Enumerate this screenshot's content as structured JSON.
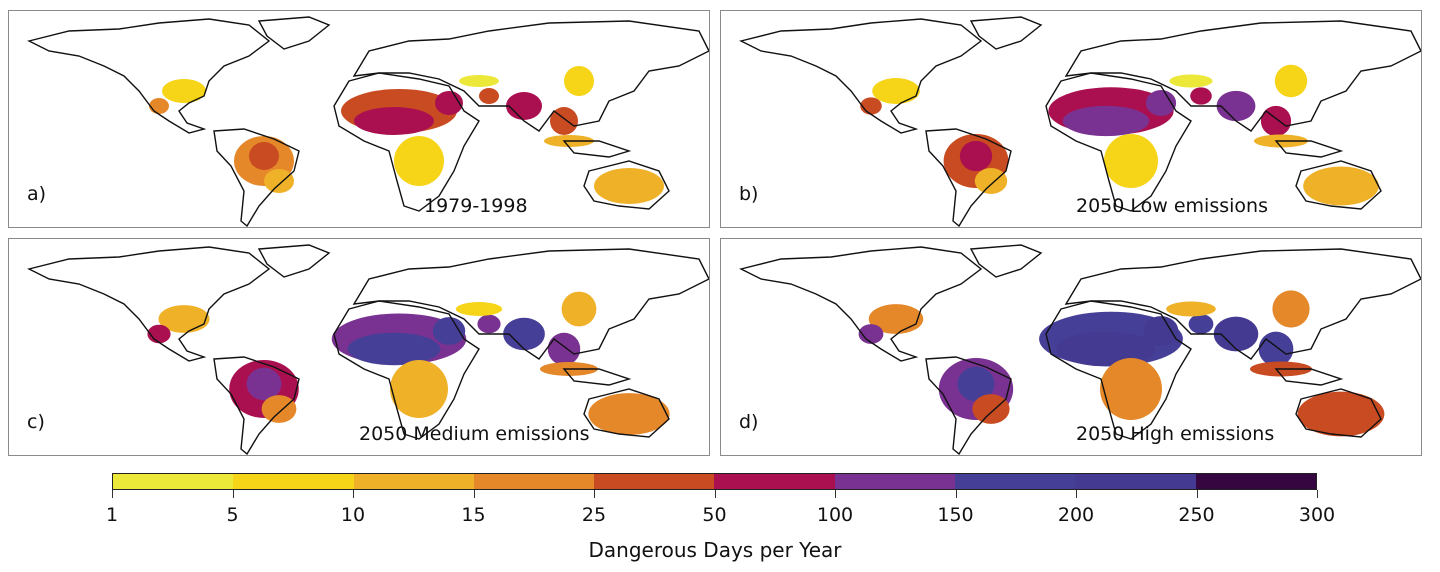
{
  "panels": [
    {
      "label": "a)",
      "title": "1979-1998",
      "intensity": 0
    },
    {
      "label": "b)",
      "title": "2050 Low emissions",
      "intensity": 1
    },
    {
      "label": "c)",
      "title": "2050 Medium emissions",
      "intensity": 2
    },
    {
      "label": "d)",
      "title": "2050 High emissions",
      "intensity": 3
    }
  ],
  "colorbar": {
    "title": "Dangerous Days per Year",
    "ticks": [
      "1",
      "5",
      "10",
      "15",
      "25",
      "50",
      "100",
      "150",
      "200",
      "250",
      "300"
    ],
    "colors": [
      "#ece83a",
      "#f6d417",
      "#eeb127",
      "#e4882a",
      "#c94b22",
      "#aa1050",
      "#7a3292",
      "#463f97",
      "#443a91",
      "#35063f"
    ]
  }
}
